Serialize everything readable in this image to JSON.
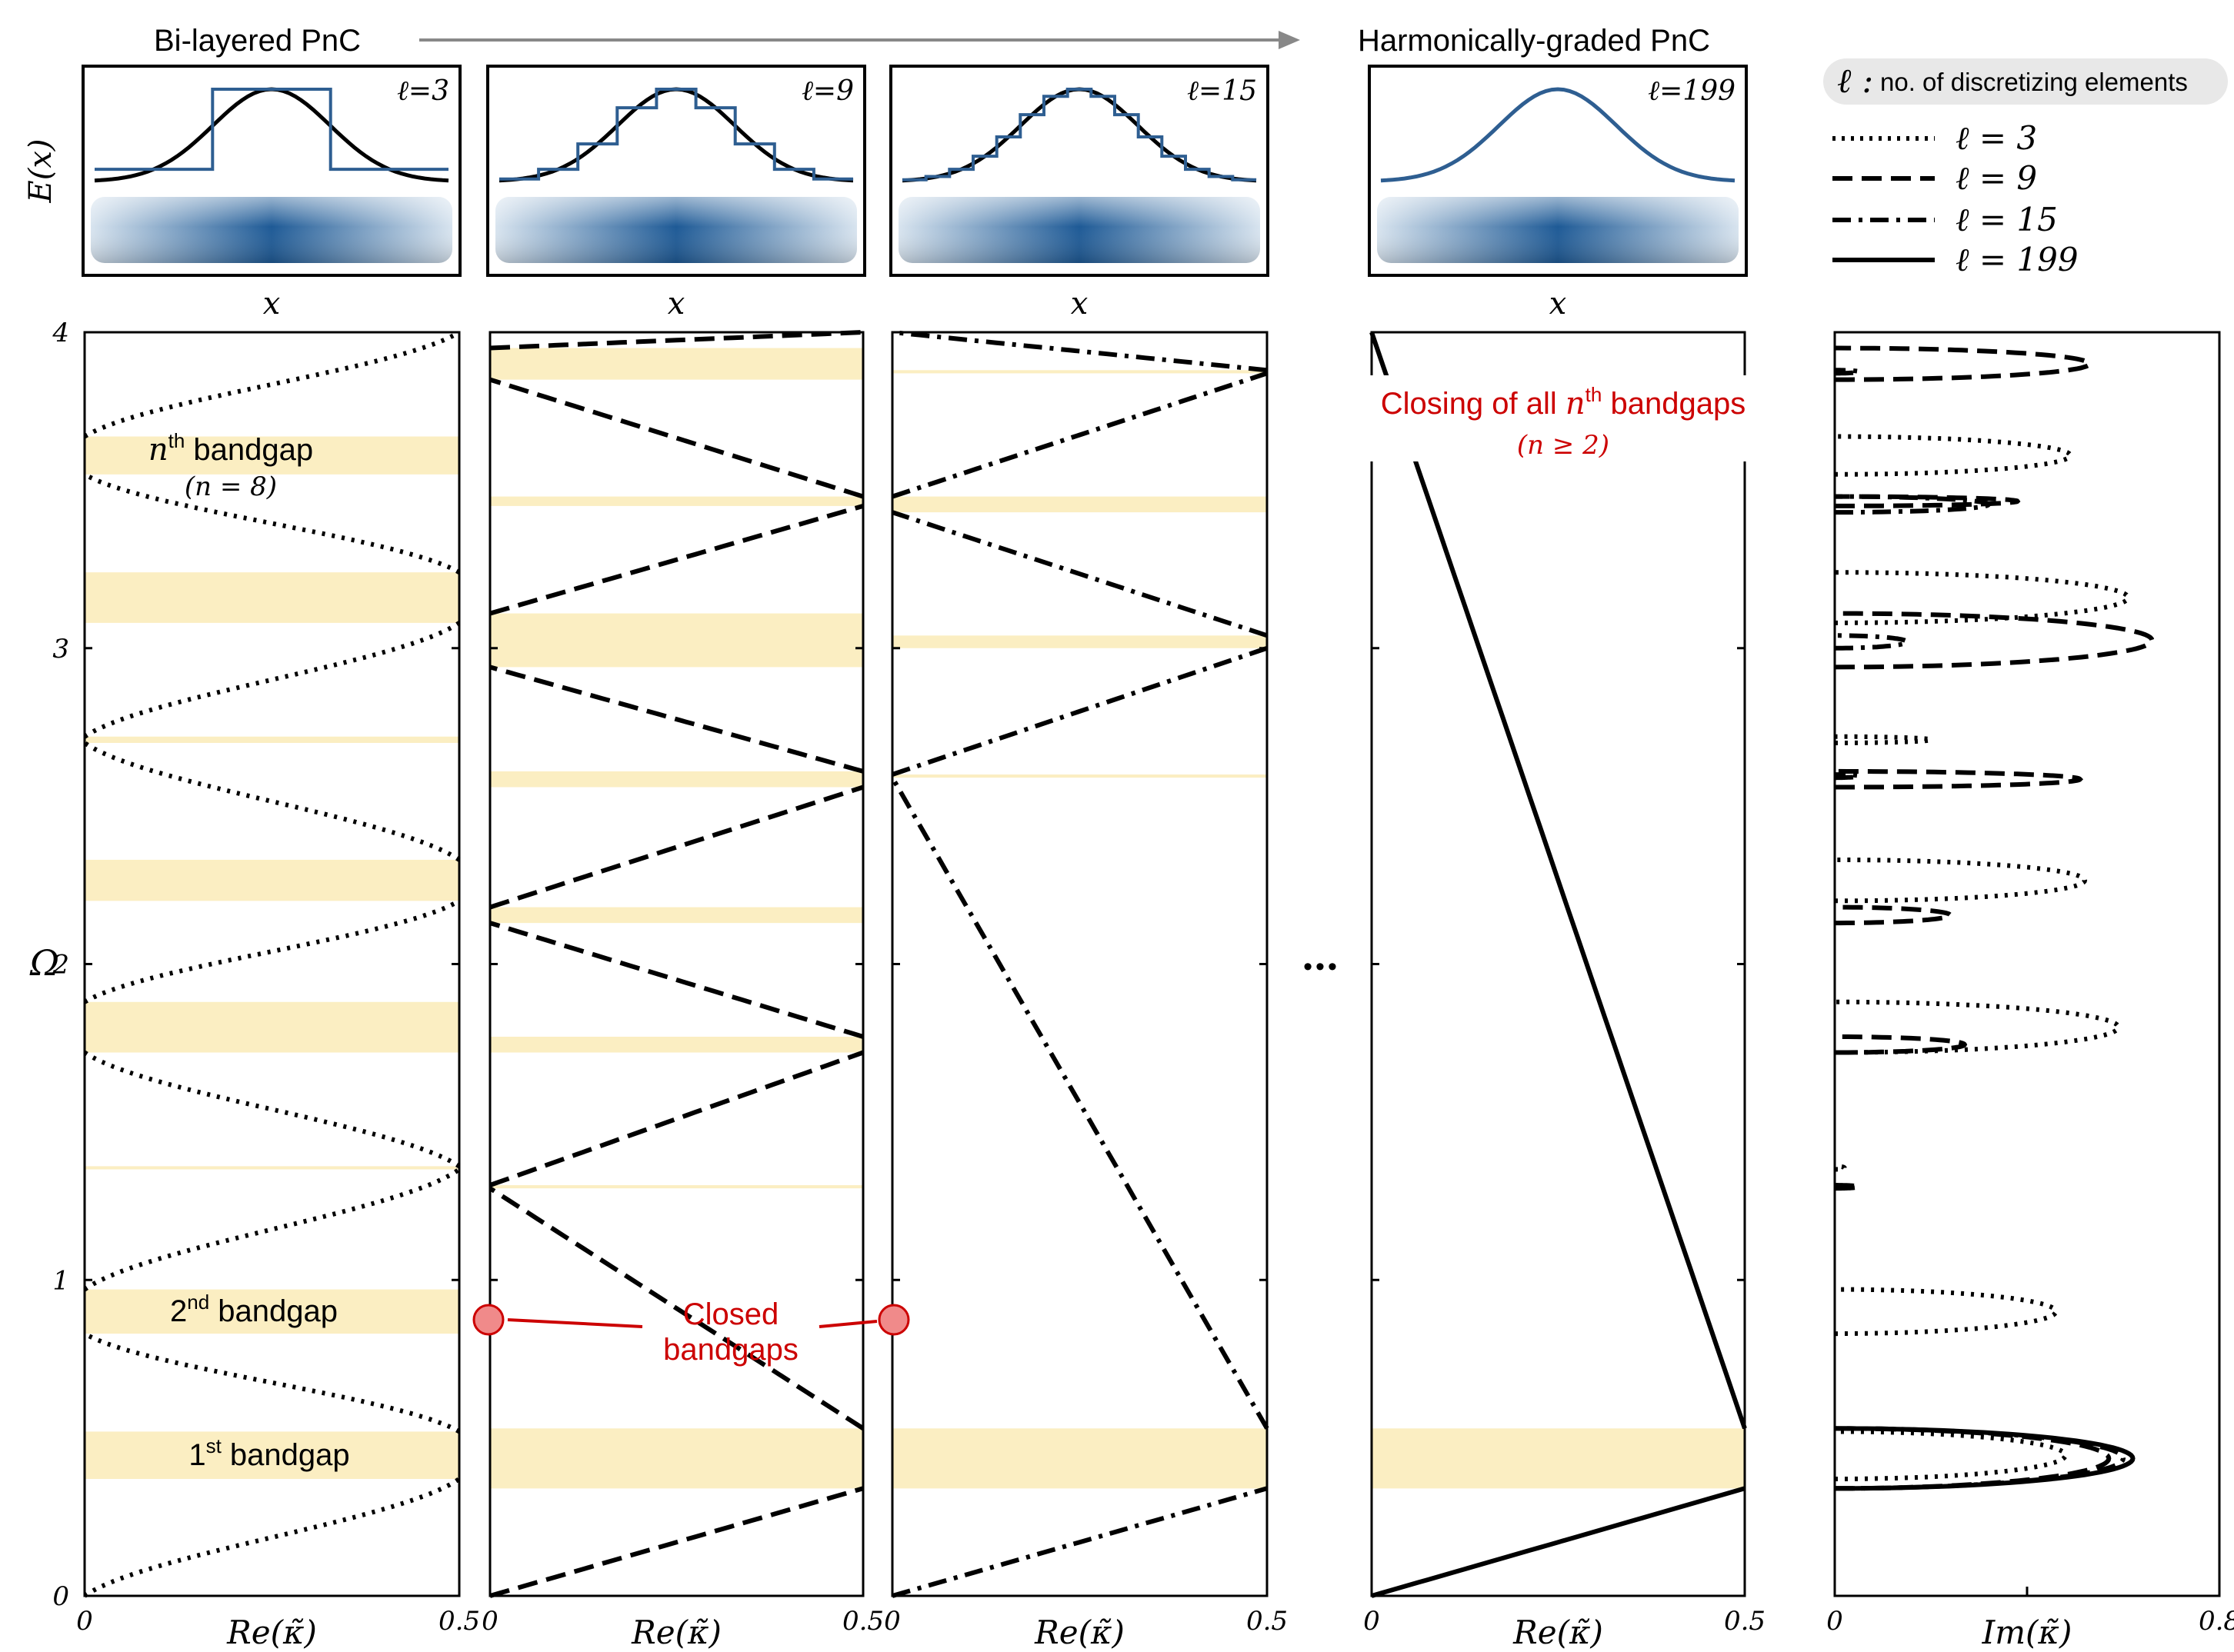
{
  "header": {
    "left_title": "Bi-layered PnC",
    "right_title": "Harmonically-graded PnC",
    "insets": [
      {
        "label": "ℓ=3",
        "ylabel": "E(x)",
        "xlabel": "x"
      },
      {
        "label": "ℓ=9",
        "xlabel": "x"
      },
      {
        "label": "ℓ=15",
        "xlabel": "x"
      },
      {
        "label": "ℓ=199",
        "xlabel": "x"
      }
    ]
  },
  "legend": {
    "title_symbol": "ℓ :",
    "title_text": "no. of discretizing elements",
    "entries": [
      {
        "label": "ℓ = 3",
        "style": "dotted"
      },
      {
        "label": "ℓ = 9",
        "style": "dashed"
      },
      {
        "label": "ℓ = 15",
        "style": "dashdot"
      },
      {
        "label": "ℓ = 199",
        "style": "solid"
      }
    ]
  },
  "annotations": {
    "nth_gap": "nth bandgap",
    "nth_gap_sub": "(n = 8)",
    "second_gap": "2nd bandgap",
    "first_gap": "1st bandgap",
    "closed_1": "Closed",
    "closed_2": "bandgaps",
    "closing_all": "Closing of all nth bandgaps",
    "closing_all_sub": "(n ≥ 2)",
    "ellipsis": "•••"
  },
  "colors": {
    "bandgap_fill": "#fbeec2",
    "annotation_red": "#cc0000",
    "inset_blue": "#2e5e91"
  },
  "chart_data": [
    {
      "type": "line",
      "title": "",
      "xlabel": "Re(κ̃)",
      "ylabel": "Ω",
      "xlim": [
        0,
        0.5
      ],
      "ylim": [
        0,
        4
      ],
      "xticks": [
        "0",
        "0.5"
      ],
      "yticks": [
        "0",
        "1",
        "2",
        "3",
        "4"
      ],
      "series": [
        {
          "name": "ℓ = 3",
          "style": "dotted"
        }
      ],
      "bandgaps": [
        [
          0.37,
          0.52
        ],
        [
          0.83,
          0.97
        ],
        [
          1.35,
          1.36
        ],
        [
          1.72,
          1.88
        ],
        [
          2.2,
          2.33
        ],
        [
          2.7,
          2.72
        ],
        [
          3.08,
          3.24
        ],
        [
          3.55,
          3.67
        ]
      ]
    },
    {
      "type": "line",
      "xlabel": "Re(κ̃)",
      "xlim": [
        0,
        0.5
      ],
      "ylim": [
        0,
        4
      ],
      "xticks": [
        "0",
        "0.5"
      ],
      "series": [
        {
          "name": "ℓ = 9",
          "style": "dashed"
        }
      ],
      "bandgaps": [
        [
          0.34,
          0.53
        ],
        [
          1.29,
          1.3
        ],
        [
          1.72,
          1.77
        ],
        [
          2.13,
          2.18
        ],
        [
          2.56,
          2.61
        ],
        [
          2.94,
          3.11
        ],
        [
          3.45,
          3.48
        ],
        [
          3.85,
          3.95
        ]
      ]
    },
    {
      "type": "line",
      "xlabel": "Re(κ̃)",
      "xlim": [
        0,
        0.5
      ],
      "ylim": [
        0,
        4
      ],
      "xticks": [
        "0",
        "0.5"
      ],
      "series": [
        {
          "name": "ℓ = 15",
          "style": "dashdot"
        }
      ],
      "bandgaps": [
        [
          0.34,
          0.53
        ],
        [
          2.59,
          2.6
        ],
        [
          3.0,
          3.04
        ],
        [
          3.43,
          3.48
        ],
        [
          3.87,
          3.88
        ]
      ]
    },
    {
      "type": "line",
      "xlabel": "Re(κ̃)",
      "xlim": [
        0,
        0.5
      ],
      "ylim": [
        0,
        4
      ],
      "xticks": [
        "0",
        "0.5"
      ],
      "series": [
        {
          "name": "ℓ = 199",
          "style": "solid"
        }
      ],
      "bandgaps": [
        [
          0.34,
          0.53
        ]
      ]
    },
    {
      "type": "line",
      "xlabel": "Im(κ̃)",
      "xlim": [
        0,
        0.8
      ],
      "ylim": [
        0,
        4
      ],
      "xticks": [
        "0",
        "0.8"
      ],
      "series": [
        {
          "name": "ℓ = 3",
          "style": "dotted",
          "loops": [
            [
              0.37,
              0.52,
              0.48
            ],
            [
              0.83,
              0.97,
              0.46
            ],
            [
              1.35,
              1.36,
              0.02
            ],
            [
              1.72,
              1.88,
              0.59
            ],
            [
              2.2,
              2.33,
              0.52
            ],
            [
              2.7,
              2.72,
              0.2
            ],
            [
              3.08,
              3.24,
              0.61
            ],
            [
              3.55,
              3.67,
              0.49
            ]
          ]
        },
        {
          "name": "ℓ = 9",
          "style": "dashed",
          "loops": [
            [
              0.34,
              0.53,
              0.57
            ],
            [
              1.29,
              1.3,
              0.05
            ],
            [
              1.72,
              1.77,
              0.27
            ],
            [
              2.13,
              2.18,
              0.24
            ],
            [
              2.56,
              2.61,
              0.51
            ],
            [
              2.94,
              3.11,
              0.66
            ],
            [
              3.45,
              3.48,
              0.38
            ],
            [
              3.85,
              3.95,
              0.53
            ]
          ]
        },
        {
          "name": "ℓ = 15",
          "style": "dashdot",
          "loops": [
            [
              0.34,
              0.53,
              0.6
            ],
            [
              2.59,
              2.6,
              0.05
            ],
            [
              3.0,
              3.04,
              0.15
            ],
            [
              3.43,
              3.48,
              0.32
            ],
            [
              3.87,
              3.88,
              0.05
            ]
          ]
        },
        {
          "name": "ℓ = 199",
          "style": "solid",
          "loops": [
            [
              0.34,
              0.53,
              0.62
            ]
          ]
        }
      ]
    }
  ]
}
